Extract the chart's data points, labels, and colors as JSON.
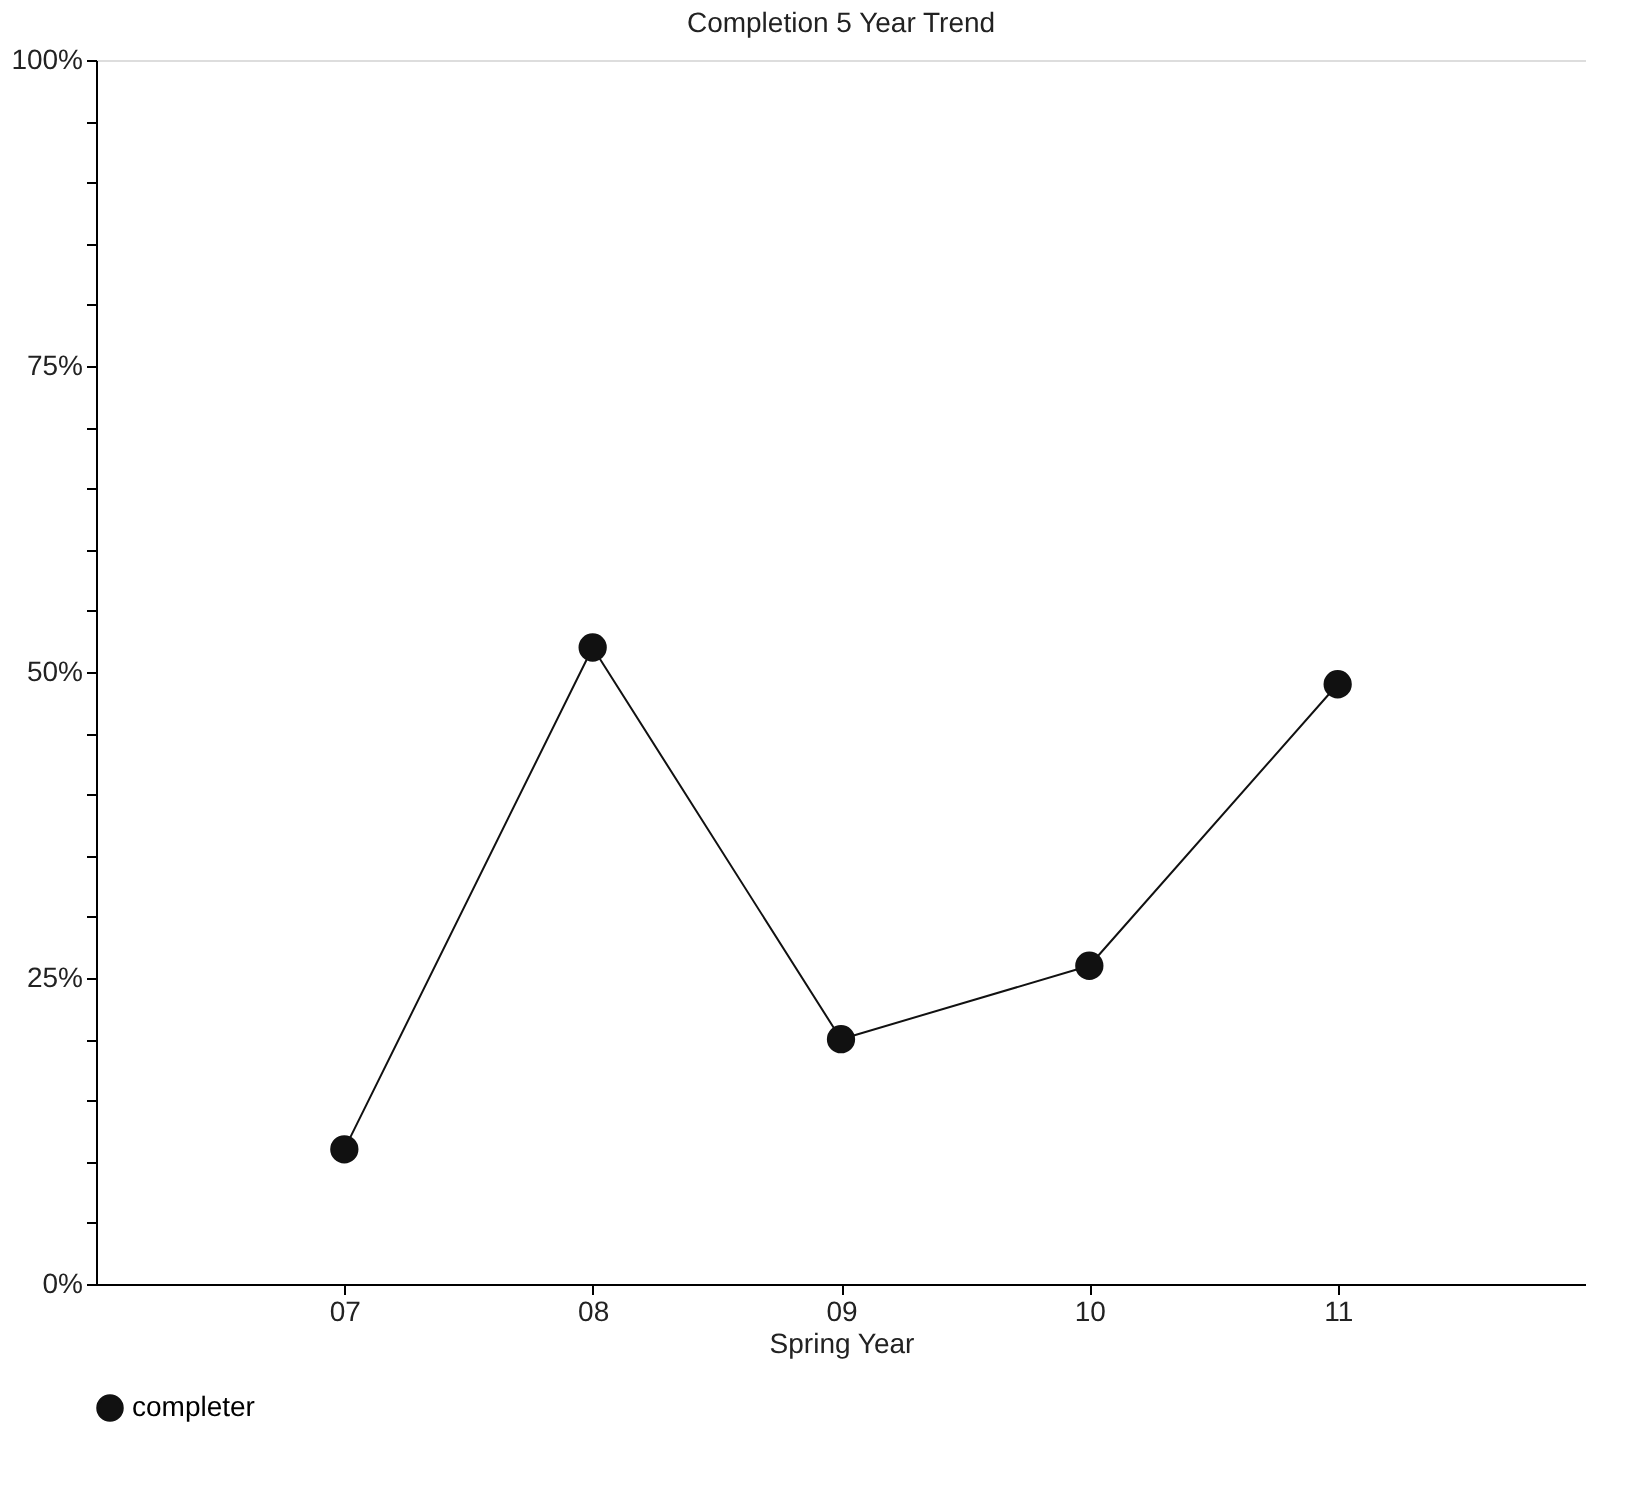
{
  "chart_data": {
    "type": "line",
    "title": "Completion 5 Year Trend",
    "xlabel": "Spring Year",
    "categories": [
      "07",
      "08",
      "09",
      "10",
      "11"
    ],
    "series": [
      {
        "name": "completer",
        "color": "#111111",
        "values": [
          11,
          52,
          20,
          26,
          49
        ]
      }
    ],
    "ylim": [
      0,
      100
    ],
    "yticks": [
      {
        "value": 0,
        "label": "0%"
      },
      {
        "value": 5,
        "label": null
      },
      {
        "value": 10,
        "label": null
      },
      {
        "value": 15,
        "label": null
      },
      {
        "value": 20,
        "label": null
      },
      {
        "value": 25,
        "label": "25%"
      },
      {
        "value": 30,
        "label": null
      },
      {
        "value": 35,
        "label": null
      },
      {
        "value": 40,
        "label": null
      },
      {
        "value": 45,
        "label": null
      },
      {
        "value": 50,
        "label": "50%"
      },
      {
        "value": 55,
        "label": null
      },
      {
        "value": 60,
        "label": null
      },
      {
        "value": 65,
        "label": null
      },
      {
        "value": 70,
        "label": null
      },
      {
        "value": 75,
        "label": "75%"
      },
      {
        "value": 80,
        "label": null
      },
      {
        "value": 85,
        "label": null
      },
      {
        "value": 90,
        "label": null
      },
      {
        "value": 95,
        "label": null
      },
      {
        "value": 100,
        "label": "100%"
      }
    ],
    "grid": false,
    "legend": "bottom",
    "marker": "circle",
    "line_style": "solid"
  }
}
